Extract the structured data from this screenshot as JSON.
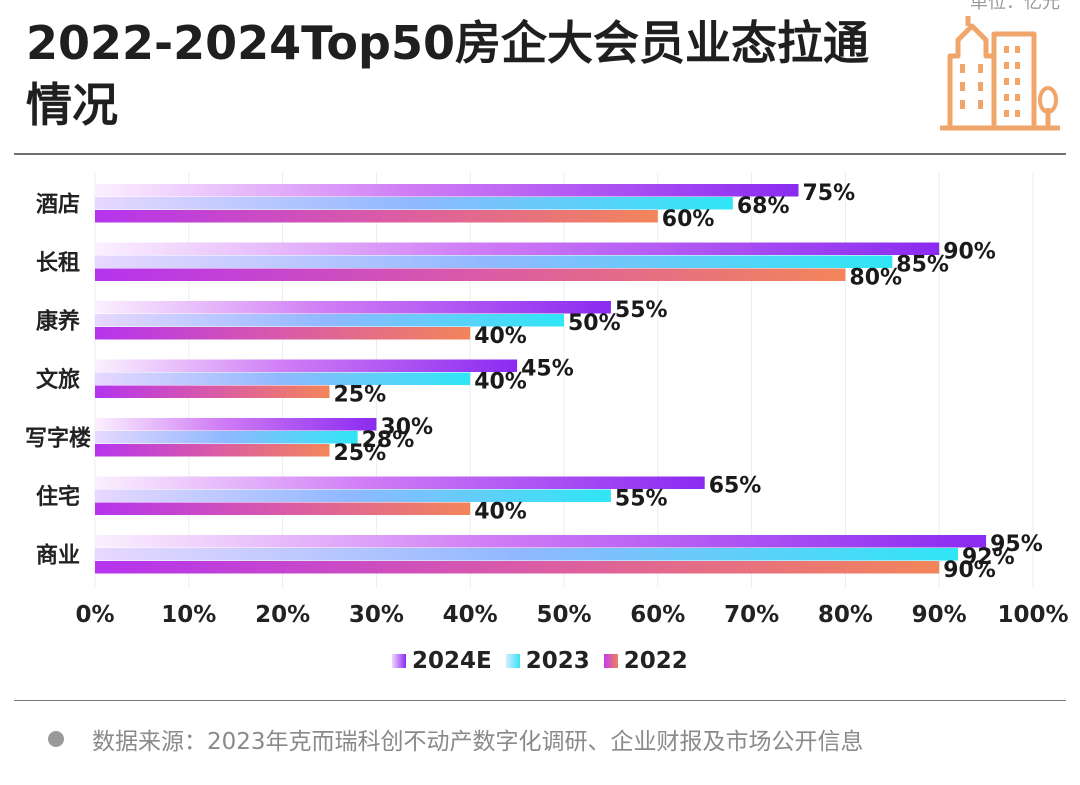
{
  "header": {
    "title": "2022-2024Top50房企大会员业态拉通情况",
    "unit": "单位：亿元"
  },
  "footer": {
    "source": "数据来源：2023年克而瑞科创不动产数字化调研、企业财报及市场公开信息"
  },
  "colors": {
    "series_2024E": "#8a2bf0",
    "series_2023": "#33e3f5",
    "series_2022": "#f0825a",
    "logo": "#f0a66a"
  },
  "icons": [
    "building-logo-icon"
  ],
  "chart_data": {
    "type": "bar",
    "orientation": "horizontal",
    "title": "2022-2024Top50房企大会员业态拉通情况",
    "categories": [
      "酒店",
      "长租",
      "康养",
      "文旅",
      "写字楼",
      "住宅",
      "商业"
    ],
    "series": [
      {
        "name": "2024E",
        "values": [
          75,
          90,
          55,
          45,
          30,
          65,
          95
        ]
      },
      {
        "name": "2023",
        "values": [
          68,
          85,
          50,
          40,
          28,
          55,
          92
        ]
      },
      {
        "name": "2022",
        "values": [
          60,
          80,
          40,
          25,
          25,
          40,
          90
        ]
      }
    ],
    "value_suffix": "%",
    "xlim": [
      0,
      100
    ],
    "x_ticks": [
      "0%",
      "10%",
      "20%",
      "30%",
      "40%",
      "50%",
      "60%",
      "70%",
      "80%",
      "90%",
      "100%"
    ],
    "grid": true,
    "legend_position": "bottom"
  }
}
